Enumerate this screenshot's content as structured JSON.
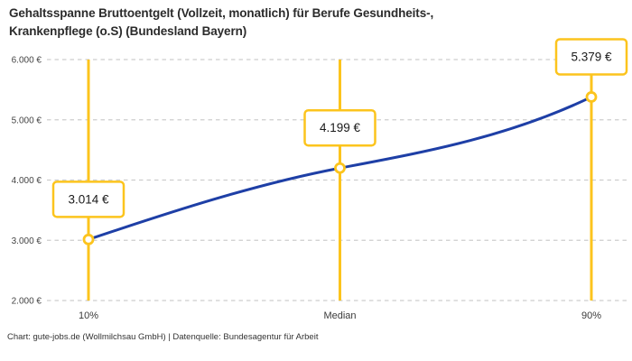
{
  "header": {
    "title_line1": "Gehaltsspanne Bruttoentgelt (Vollzeit, monatlich) für Berufe Gesundheits-,",
    "title_line2": "Krankenpflege (o.S) (Bundesland Bayern)"
  },
  "chart_data": {
    "type": "line",
    "title": "Gehaltsspanne Bruttoentgelt (Vollzeit, monatlich) für Berufe Gesundheits-, Krankenpflege (o.S) (Bundesland Bayern)",
    "categories": [
      "10%",
      "Median",
      "90%"
    ],
    "values": [
      3014,
      4199,
      5379
    ],
    "value_labels": [
      "3.014 €",
      "4.199 €",
      "5.379 €"
    ],
    "y_ticks": [
      {
        "value": 2000,
        "label": "2.000 €"
      },
      {
        "value": 3000,
        "label": "3.000 €"
      },
      {
        "value": 4000,
        "label": "4.000 €"
      },
      {
        "value": 5000,
        "label": "5.000 €"
      },
      {
        "value": 6000,
        "label": "6.000 €"
      }
    ],
    "ylim": [
      2000,
      6000
    ],
    "grid": "horizontal-dashed",
    "legend": "none",
    "colors": {
      "line": "#1E3FA6",
      "highlight": "#FCC41D",
      "grid": "#CDCDCD",
      "marker_fill": "#FFFFFF",
      "label_box_fill": "#FFFFFF",
      "label_text": "#1A1A1A",
      "tick_text": "#444444"
    }
  },
  "footer": {
    "attribution": "Chart: gute-jobs.de (Wollmilchsau GmbH) | Datenquelle: Bundesagentur für Arbeit"
  }
}
